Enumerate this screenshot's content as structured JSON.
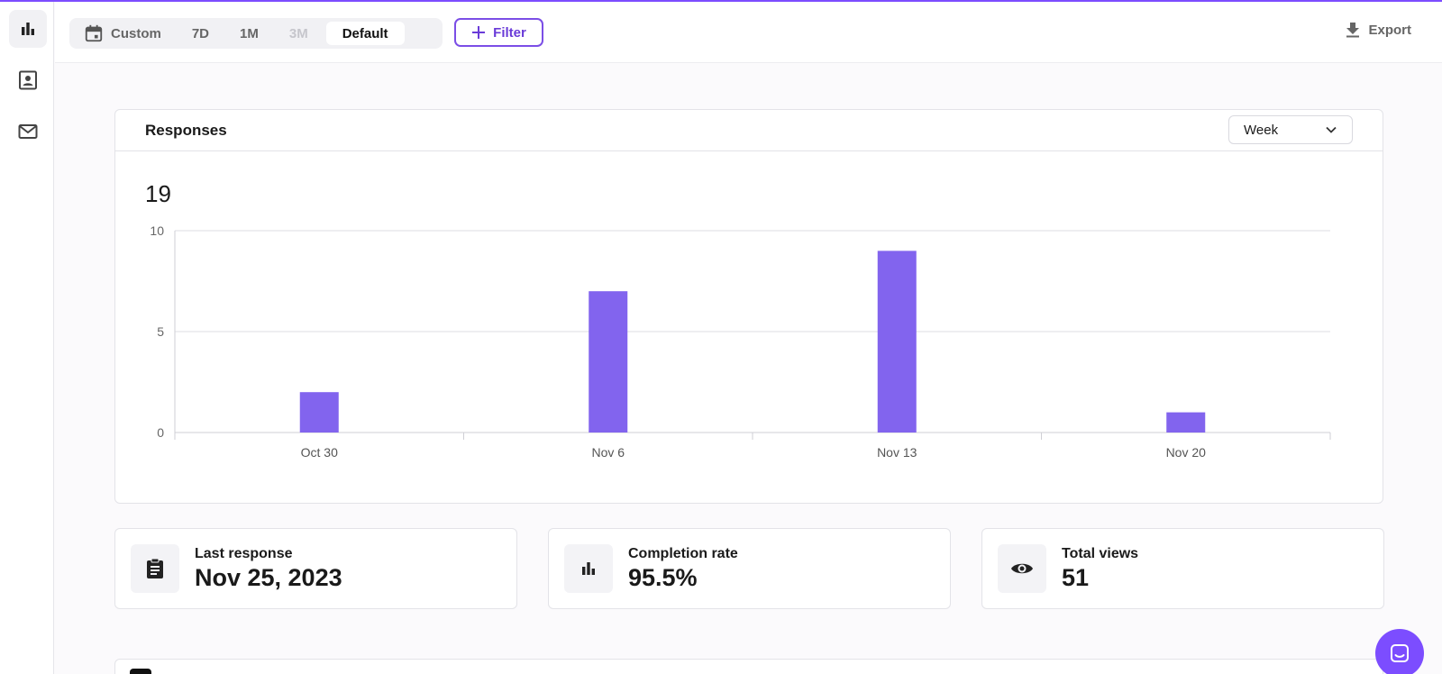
{
  "sidebar": {
    "items": [
      {
        "icon": "bar-chart-icon",
        "active": true
      },
      {
        "icon": "contact-card-icon",
        "active": false
      },
      {
        "icon": "mail-icon",
        "active": false
      }
    ]
  },
  "topbar": {
    "range_tabs": [
      {
        "label": "Custom",
        "state": "normal"
      },
      {
        "label": "7D",
        "state": "normal"
      },
      {
        "label": "1M",
        "state": "normal"
      },
      {
        "label": "3M",
        "state": "disabled"
      },
      {
        "label": "Default",
        "state": "active"
      }
    ],
    "filter_label": "Filter",
    "export_label": "Export"
  },
  "responses": {
    "title": "Responses",
    "interval": "Week",
    "total": "19"
  },
  "chart_data": {
    "type": "bar",
    "categories": [
      "Oct 30",
      "Nov 6",
      "Nov 13",
      "Nov 20"
    ],
    "values": [
      2,
      7,
      9,
      1
    ],
    "ylim": [
      0,
      10
    ],
    "yticks": [
      "0",
      "5",
      "10"
    ],
    "grid": true,
    "color": "#8264ee"
  },
  "stats": [
    {
      "label": "Last response",
      "value": "Nov 25, 2023",
      "icon": "clipboard-icon"
    },
    {
      "label": "Completion rate",
      "value": "95.5%",
      "icon": "bar-chart-icon"
    },
    {
      "label": "Total views",
      "value": "51",
      "icon": "eye-icon"
    }
  ],
  "colors": {
    "accent": "#7c4dff",
    "bar": "#8264ee"
  }
}
